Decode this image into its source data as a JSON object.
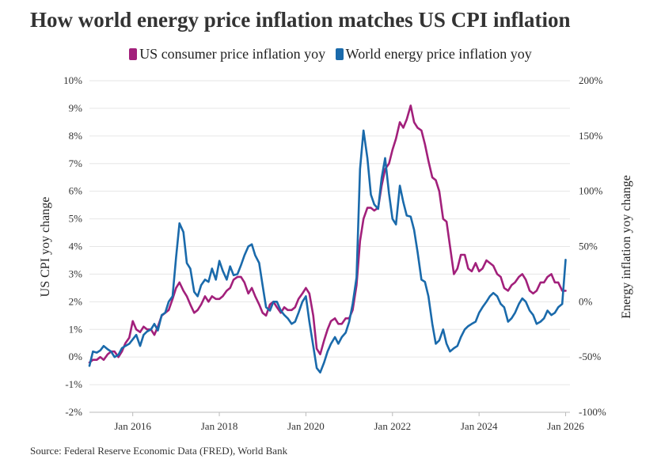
{
  "title": "How world energy price inflation matches US CPI inflation",
  "source": "Source: Federal Reserve Economic Data (FRED), World Bank",
  "chart_data": {
    "type": "line",
    "title": "How world energy price inflation matches US CPI inflation",
    "ylabel": "US CPI yoy change",
    "y2label": "Energy inflation yoy change",
    "ylim": [
      -2,
      10
    ],
    "y2lim": [
      -100,
      200
    ],
    "xlim": [
      2015.0,
      2026.1
    ],
    "yticks": [
      "-2%",
      "-1%",
      "0%",
      "1%",
      "2%",
      "3%",
      "4%",
      "5%",
      "6%",
      "7%",
      "8%",
      "9%",
      "10%"
    ],
    "y2ticks": [
      "-100%",
      "-50%",
      "0%",
      "50%",
      "100%",
      "150%",
      "200%"
    ],
    "xticks": [
      {
        "x": 2016,
        "label": "Jan 2016"
      },
      {
        "x": 2018,
        "label": "Jan 2018"
      },
      {
        "x": 2020,
        "label": "Jan 2020"
      },
      {
        "x": 2022,
        "label": "Jan 2022"
      },
      {
        "x": 2024,
        "label": "Jan 2024"
      },
      {
        "x": 2026,
        "label": "Jan 2026"
      }
    ],
    "grid": true,
    "legend": "top-center",
    "series": [
      {
        "name": "US consumer price inflation yoy",
        "axis": "left",
        "color": "#a2207b",
        "points": [
          [
            2015.0,
            -0.2
          ],
          [
            2015.08,
            -0.1
          ],
          [
            2015.17,
            -0.1
          ],
          [
            2015.25,
            0.0
          ],
          [
            2015.33,
            -0.1
          ],
          [
            2015.42,
            0.1
          ],
          [
            2015.5,
            0.2
          ],
          [
            2015.58,
            0.2
          ],
          [
            2015.67,
            0.0
          ],
          [
            2015.75,
            0.2
          ],
          [
            2015.83,
            0.5
          ],
          [
            2015.92,
            0.7
          ],
          [
            2016.0,
            1.3
          ],
          [
            2016.08,
            1.0
          ],
          [
            2016.17,
            0.9
          ],
          [
            2016.25,
            1.1
          ],
          [
            2016.33,
            1.0
          ],
          [
            2016.42,
            1.0
          ],
          [
            2016.5,
            0.8
          ],
          [
            2016.58,
            1.1
          ],
          [
            2016.67,
            1.5
          ],
          [
            2016.75,
            1.6
          ],
          [
            2016.83,
            1.7
          ],
          [
            2016.92,
            2.1
          ],
          [
            2017.0,
            2.5
          ],
          [
            2017.08,
            2.7
          ],
          [
            2017.17,
            2.4
          ],
          [
            2017.25,
            2.2
          ],
          [
            2017.33,
            1.9
          ],
          [
            2017.42,
            1.6
          ],
          [
            2017.5,
            1.7
          ],
          [
            2017.58,
            1.9
          ],
          [
            2017.67,
            2.2
          ],
          [
            2017.75,
            2.0
          ],
          [
            2017.83,
            2.2
          ],
          [
            2017.92,
            2.1
          ],
          [
            2018.0,
            2.1
          ],
          [
            2018.08,
            2.2
          ],
          [
            2018.17,
            2.4
          ],
          [
            2018.25,
            2.5
          ],
          [
            2018.33,
            2.8
          ],
          [
            2018.42,
            2.9
          ],
          [
            2018.5,
            2.9
          ],
          [
            2018.58,
            2.7
          ],
          [
            2018.67,
            2.3
          ],
          [
            2018.75,
            2.5
          ],
          [
            2018.83,
            2.2
          ],
          [
            2018.92,
            1.9
          ],
          [
            2019.0,
            1.6
          ],
          [
            2019.08,
            1.5
          ],
          [
            2019.17,
            1.9
          ],
          [
            2019.25,
            2.0
          ],
          [
            2019.33,
            1.8
          ],
          [
            2019.42,
            1.6
          ],
          [
            2019.5,
            1.8
          ],
          [
            2019.58,
            1.7
          ],
          [
            2019.67,
            1.7
          ],
          [
            2019.75,
            1.8
          ],
          [
            2019.83,
            2.1
          ],
          [
            2019.92,
            2.3
          ],
          [
            2020.0,
            2.5
          ],
          [
            2020.08,
            2.3
          ],
          [
            2020.17,
            1.5
          ],
          [
            2020.25,
            0.3
          ],
          [
            2020.33,
            0.1
          ],
          [
            2020.42,
            0.6
          ],
          [
            2020.5,
            1.0
          ],
          [
            2020.58,
            1.3
          ],
          [
            2020.67,
            1.4
          ],
          [
            2020.75,
            1.2
          ],
          [
            2020.83,
            1.2
          ],
          [
            2020.92,
            1.4
          ],
          [
            2021.0,
            1.4
          ],
          [
            2021.08,
            1.7
          ],
          [
            2021.17,
            2.6
          ],
          [
            2021.25,
            4.2
          ],
          [
            2021.33,
            5.0
          ],
          [
            2021.42,
            5.4
          ],
          [
            2021.5,
            5.4
          ],
          [
            2021.58,
            5.3
          ],
          [
            2021.67,
            5.4
          ],
          [
            2021.75,
            6.2
          ],
          [
            2021.83,
            6.8
          ],
          [
            2021.92,
            7.0
          ],
          [
            2022.0,
            7.5
          ],
          [
            2022.08,
            7.9
          ],
          [
            2022.17,
            8.5
          ],
          [
            2022.25,
            8.3
          ],
          [
            2022.33,
            8.6
          ],
          [
            2022.42,
            9.1
          ],
          [
            2022.5,
            8.5
          ],
          [
            2022.58,
            8.3
          ],
          [
            2022.67,
            8.2
          ],
          [
            2022.75,
            7.7
          ],
          [
            2022.83,
            7.1
          ],
          [
            2022.92,
            6.5
          ],
          [
            2023.0,
            6.4
          ],
          [
            2023.08,
            6.0
          ],
          [
            2023.17,
            5.0
          ],
          [
            2023.25,
            4.9
          ],
          [
            2023.33,
            4.0
          ],
          [
            2023.42,
            3.0
          ],
          [
            2023.5,
            3.2
          ],
          [
            2023.58,
            3.7
          ],
          [
            2023.67,
            3.7
          ],
          [
            2023.75,
            3.2
          ],
          [
            2023.83,
            3.1
          ],
          [
            2023.92,
            3.4
          ],
          [
            2024.0,
            3.1
          ],
          [
            2024.08,
            3.2
          ],
          [
            2024.17,
            3.5
          ],
          [
            2024.25,
            3.4
          ],
          [
            2024.33,
            3.3
          ],
          [
            2024.42,
            3.0
          ],
          [
            2024.5,
            2.9
          ],
          [
            2024.58,
            2.5
          ],
          [
            2024.67,
            2.4
          ],
          [
            2024.75,
            2.6
          ],
          [
            2024.83,
            2.7
          ],
          [
            2024.92,
            2.9
          ],
          [
            2025.0,
            3.0
          ],
          [
            2025.08,
            2.8
          ],
          [
            2025.17,
            2.4
          ],
          [
            2025.25,
            2.3
          ],
          [
            2025.33,
            2.4
          ],
          [
            2025.42,
            2.7
          ],
          [
            2025.5,
            2.7
          ],
          [
            2025.58,
            2.9
          ],
          [
            2025.67,
            3.0
          ],
          [
            2025.75,
            2.7
          ],
          [
            2025.83,
            2.7
          ],
          [
            2025.92,
            2.4
          ],
          [
            2026.0,
            2.4
          ]
        ]
      },
      {
        "name": "World energy price inflation yoy",
        "axis": "right",
        "color": "#1a6aab",
        "points": [
          [
            2015.0,
            -58
          ],
          [
            2015.08,
            -45
          ],
          [
            2015.17,
            -46
          ],
          [
            2015.25,
            -44
          ],
          [
            2015.33,
            -40
          ],
          [
            2015.42,
            -43
          ],
          [
            2015.5,
            -45
          ],
          [
            2015.58,
            -50
          ],
          [
            2015.67,
            -48
          ],
          [
            2015.75,
            -42
          ],
          [
            2015.83,
            -40
          ],
          [
            2015.92,
            -38
          ],
          [
            2016.0,
            -34
          ],
          [
            2016.08,
            -30
          ],
          [
            2016.17,
            -40
          ],
          [
            2016.25,
            -30
          ],
          [
            2016.33,
            -27
          ],
          [
            2016.42,
            -25
          ],
          [
            2016.5,
            -20
          ],
          [
            2016.58,
            -26
          ],
          [
            2016.67,
            -12
          ],
          [
            2016.75,
            -10
          ],
          [
            2016.83,
            0
          ],
          [
            2016.92,
            5
          ],
          [
            2017.0,
            40
          ],
          [
            2017.08,
            71
          ],
          [
            2017.17,
            63
          ],
          [
            2017.25,
            35
          ],
          [
            2017.33,
            30
          ],
          [
            2017.42,
            9
          ],
          [
            2017.5,
            5
          ],
          [
            2017.58,
            15
          ],
          [
            2017.67,
            20
          ],
          [
            2017.75,
            18
          ],
          [
            2017.83,
            30
          ],
          [
            2017.92,
            20
          ],
          [
            2018.0,
            37
          ],
          [
            2018.08,
            28
          ],
          [
            2018.17,
            20
          ],
          [
            2018.25,
            32
          ],
          [
            2018.33,
            24
          ],
          [
            2018.42,
            25
          ],
          [
            2018.5,
            33
          ],
          [
            2018.58,
            42
          ],
          [
            2018.67,
            50
          ],
          [
            2018.75,
            52
          ],
          [
            2018.83,
            42
          ],
          [
            2018.92,
            35
          ],
          [
            2019.0,
            15
          ],
          [
            2019.08,
            -5
          ],
          [
            2019.17,
            -8
          ],
          [
            2019.25,
            0
          ],
          [
            2019.33,
            0
          ],
          [
            2019.42,
            -8
          ],
          [
            2019.5,
            -12
          ],
          [
            2019.58,
            -15
          ],
          [
            2019.67,
            -20
          ],
          [
            2019.75,
            -18
          ],
          [
            2019.83,
            -10
          ],
          [
            2019.92,
            0
          ],
          [
            2020.0,
            5
          ],
          [
            2020.08,
            -18
          ],
          [
            2020.17,
            -40
          ],
          [
            2020.25,
            -60
          ],
          [
            2020.33,
            -64
          ],
          [
            2020.42,
            -55
          ],
          [
            2020.5,
            -45
          ],
          [
            2020.58,
            -38
          ],
          [
            2020.67,
            -32
          ],
          [
            2020.75,
            -38
          ],
          [
            2020.83,
            -32
          ],
          [
            2020.92,
            -28
          ],
          [
            2021.0,
            -18
          ],
          [
            2021.08,
            -2
          ],
          [
            2021.17,
            22
          ],
          [
            2021.25,
            120
          ],
          [
            2021.33,
            155
          ],
          [
            2021.42,
            130
          ],
          [
            2021.5,
            97
          ],
          [
            2021.58,
            88
          ],
          [
            2021.67,
            84
          ],
          [
            2021.75,
            112
          ],
          [
            2021.83,
            130
          ],
          [
            2021.92,
            98
          ],
          [
            2022.0,
            75
          ],
          [
            2022.08,
            70
          ],
          [
            2022.17,
            105
          ],
          [
            2022.25,
            90
          ],
          [
            2022.33,
            78
          ],
          [
            2022.42,
            77
          ],
          [
            2022.5,
            65
          ],
          [
            2022.58,
            45
          ],
          [
            2022.67,
            20
          ],
          [
            2022.75,
            18
          ],
          [
            2022.83,
            5
          ],
          [
            2022.92,
            -20
          ],
          [
            2023.0,
            -38
          ],
          [
            2023.08,
            -35
          ],
          [
            2023.17,
            -25
          ],
          [
            2023.25,
            -38
          ],
          [
            2023.33,
            -45
          ],
          [
            2023.42,
            -42
          ],
          [
            2023.5,
            -40
          ],
          [
            2023.58,
            -32
          ],
          [
            2023.67,
            -25
          ],
          [
            2023.75,
            -22
          ],
          [
            2023.83,
            -20
          ],
          [
            2023.92,
            -18
          ],
          [
            2024.0,
            -10
          ],
          [
            2024.08,
            -5
          ],
          [
            2024.17,
            0
          ],
          [
            2024.25,
            5
          ],
          [
            2024.33,
            8
          ],
          [
            2024.42,
            5
          ],
          [
            2024.5,
            -2
          ],
          [
            2024.58,
            -5
          ],
          [
            2024.67,
            -18
          ],
          [
            2024.75,
            -15
          ],
          [
            2024.83,
            -10
          ],
          [
            2024.92,
            -2
          ],
          [
            2025.0,
            3
          ],
          [
            2025.08,
            0
          ],
          [
            2025.17,
            -8
          ],
          [
            2025.25,
            -12
          ],
          [
            2025.33,
            -20
          ],
          [
            2025.42,
            -18
          ],
          [
            2025.5,
            -15
          ],
          [
            2025.58,
            -8
          ],
          [
            2025.67,
            -12
          ],
          [
            2025.75,
            -10
          ],
          [
            2025.83,
            -5
          ],
          [
            2025.92,
            -2
          ],
          [
            2026.0,
            38
          ]
        ]
      }
    ]
  }
}
